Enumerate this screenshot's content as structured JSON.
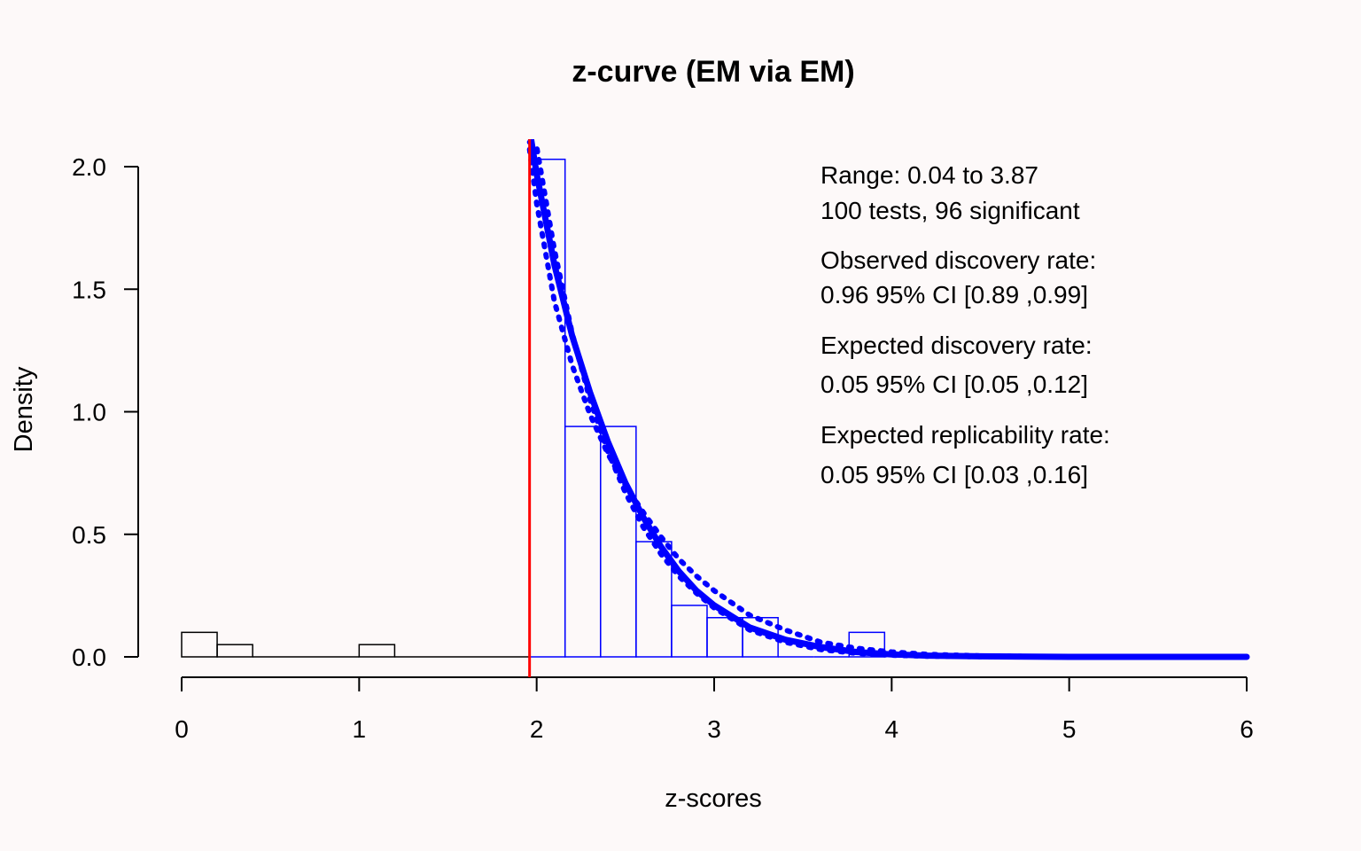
{
  "chart_data": {
    "type": "histogram",
    "title": "z-curve (EM via EM)",
    "xlabel": "z-scores",
    "ylabel": "Density",
    "xlim": [
      0,
      6
    ],
    "ylim": [
      0,
      2.0
    ],
    "x_ticks": [
      "0",
      "1",
      "2",
      "3",
      "4",
      "5",
      "6"
    ],
    "y_ticks": [
      "0.0",
      "0.5",
      "1.0",
      "1.5",
      "2.0"
    ],
    "grid": false,
    "significance_threshold": 1.96,
    "bins_nonsignificant": [
      {
        "x0": 0.0,
        "x1": 0.2,
        "density": 0.1
      },
      {
        "x0": 0.2,
        "x1": 0.4,
        "density": 0.05
      },
      {
        "x0": 0.4,
        "x1": 1.0,
        "density": 0.0
      },
      {
        "x0": 1.0,
        "x1": 1.2,
        "density": 0.05
      },
      {
        "x0": 1.2,
        "x1": 1.96,
        "density": 0.0
      }
    ],
    "bins_significant": [
      {
        "x0": 1.96,
        "x1": 2.16,
        "density": 2.03
      },
      {
        "x0": 2.16,
        "x1": 2.36,
        "density": 0.94
      },
      {
        "x0": 2.36,
        "x1": 2.56,
        "density": 0.94
      },
      {
        "x0": 2.56,
        "x1": 2.76,
        "density": 0.47
      },
      {
        "x0": 2.76,
        "x1": 2.96,
        "density": 0.21
      },
      {
        "x0": 2.96,
        "x1": 3.16,
        "density": 0.16
      },
      {
        "x0": 3.16,
        "x1": 3.36,
        "density": 0.16
      },
      {
        "x0": 3.36,
        "x1": 3.56,
        "density": 0.0
      },
      {
        "x0": 3.56,
        "x1": 3.76,
        "density": 0.0
      },
      {
        "x0": 3.76,
        "x1": 3.96,
        "density": 0.1
      }
    ],
    "fitted_curve": {
      "x": [
        1.96,
        2.0,
        2.1,
        2.2,
        2.3,
        2.4,
        2.5,
        2.6,
        2.7,
        2.8,
        2.9,
        3.0,
        3.2,
        3.4,
        3.6,
        3.8,
        4.0,
        4.2,
        4.5,
        5.0,
        5.5,
        6.0
      ],
      "y": [
        2.15,
        1.97,
        1.6,
        1.31,
        1.08,
        0.88,
        0.71,
        0.57,
        0.45,
        0.35,
        0.27,
        0.21,
        0.12,
        0.07,
        0.04,
        0.02,
        0.01,
        0.005,
        0.002,
        0.0,
        0.0,
        0.0
      ]
    },
    "ci_curves": [
      {
        "x": [
          1.96,
          2.0,
          2.1,
          2.2,
          2.3,
          2.4,
          2.5,
          2.6,
          2.7,
          2.8,
          2.9,
          3.0,
          3.2,
          3.4,
          3.6,
          3.8,
          4.0,
          4.2,
          4.5,
          5.0,
          5.5,
          6.0
        ],
        "y": [
          2.07,
          1.85,
          1.45,
          1.19,
          0.99,
          0.83,
          0.7,
          0.59,
          0.49,
          0.4,
          0.33,
          0.27,
          0.17,
          0.11,
          0.06,
          0.035,
          0.02,
          0.01,
          0.004,
          0.0,
          0.0,
          0.0
        ]
      },
      {
        "x": [
          1.96,
          2.0,
          2.1,
          2.2,
          2.3,
          2.4,
          2.5,
          2.6,
          2.7,
          2.8,
          2.9,
          3.0,
          3.2,
          3.4,
          3.6,
          3.8,
          4.0,
          4.2,
          4.5,
          5.0,
          5.5,
          6.0
        ],
        "y": [
          2.1,
          2.08,
          1.66,
          1.32,
          1.05,
          0.84,
          0.67,
          0.53,
          0.42,
          0.33,
          0.26,
          0.2,
          0.11,
          0.06,
          0.03,
          0.015,
          0.007,
          0.003,
          0.001,
          0.0,
          0.0,
          0.0
        ]
      }
    ],
    "annotations": [
      "Range: 0.04 to 3.87",
      "100 tests, 96 significant",
      "Observed discovery rate:",
      "0.96  95% CI [0.89 ,0.99]",
      "Expected discovery rate:",
      "0.05  95% CI [0.05 ,0.12]",
      "Expected replicability rate:",
      "0.05  95% CI [0.03 ,0.16]"
    ],
    "colors": {
      "background": "#fdf9f9",
      "nonsignificant_bars": "#000000",
      "significant_bars": "#0000ff",
      "curve": "#0000ff",
      "threshold_line": "#ff0000",
      "axes": "#000000"
    }
  }
}
